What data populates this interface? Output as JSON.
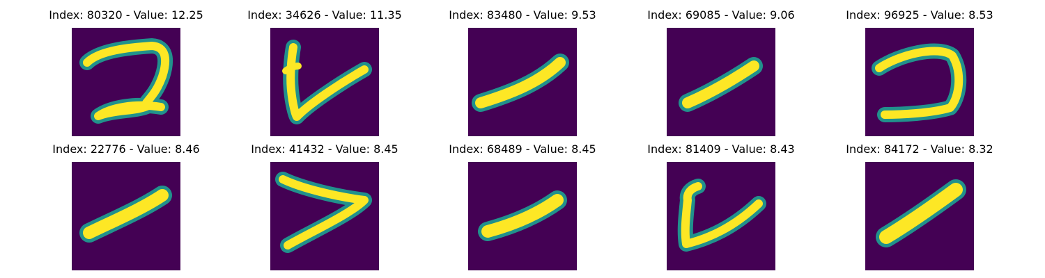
{
  "figure": {
    "colors": {
      "background": "#440154",
      "edge": "#21918c",
      "fill": "#fde725"
    },
    "panels": [
      {
        "title": "Index: 80320 - Value: 12.25",
        "glyph": "digit-2"
      },
      {
        "title": "Index: 34626 - Value: 11.35",
        "glyph": "check-stroke"
      },
      {
        "title": "Index: 83480 - Value: 9.53",
        "glyph": "diagonal-stroke"
      },
      {
        "title": "Index: 69085 - Value: 9.06",
        "glyph": "short-diagonal-stroke"
      },
      {
        "title": "Index: 96925 - Value: 8.53",
        "glyph": "reversed-c"
      },
      {
        "title": "Index: 22776 - Value: 8.46",
        "glyph": "diagonal-stroke"
      },
      {
        "title": "Index: 41432 - Value: 8.45",
        "glyph": "greater-than"
      },
      {
        "title": "Index: 68489 - Value: 8.45",
        "glyph": "diagonal-stroke"
      },
      {
        "title": "Index: 81409 - Value: 8.43",
        "glyph": "u-stroke"
      },
      {
        "title": "Index: 84172 - Value: 8.32",
        "glyph": "diagonal-stroke"
      }
    ]
  }
}
